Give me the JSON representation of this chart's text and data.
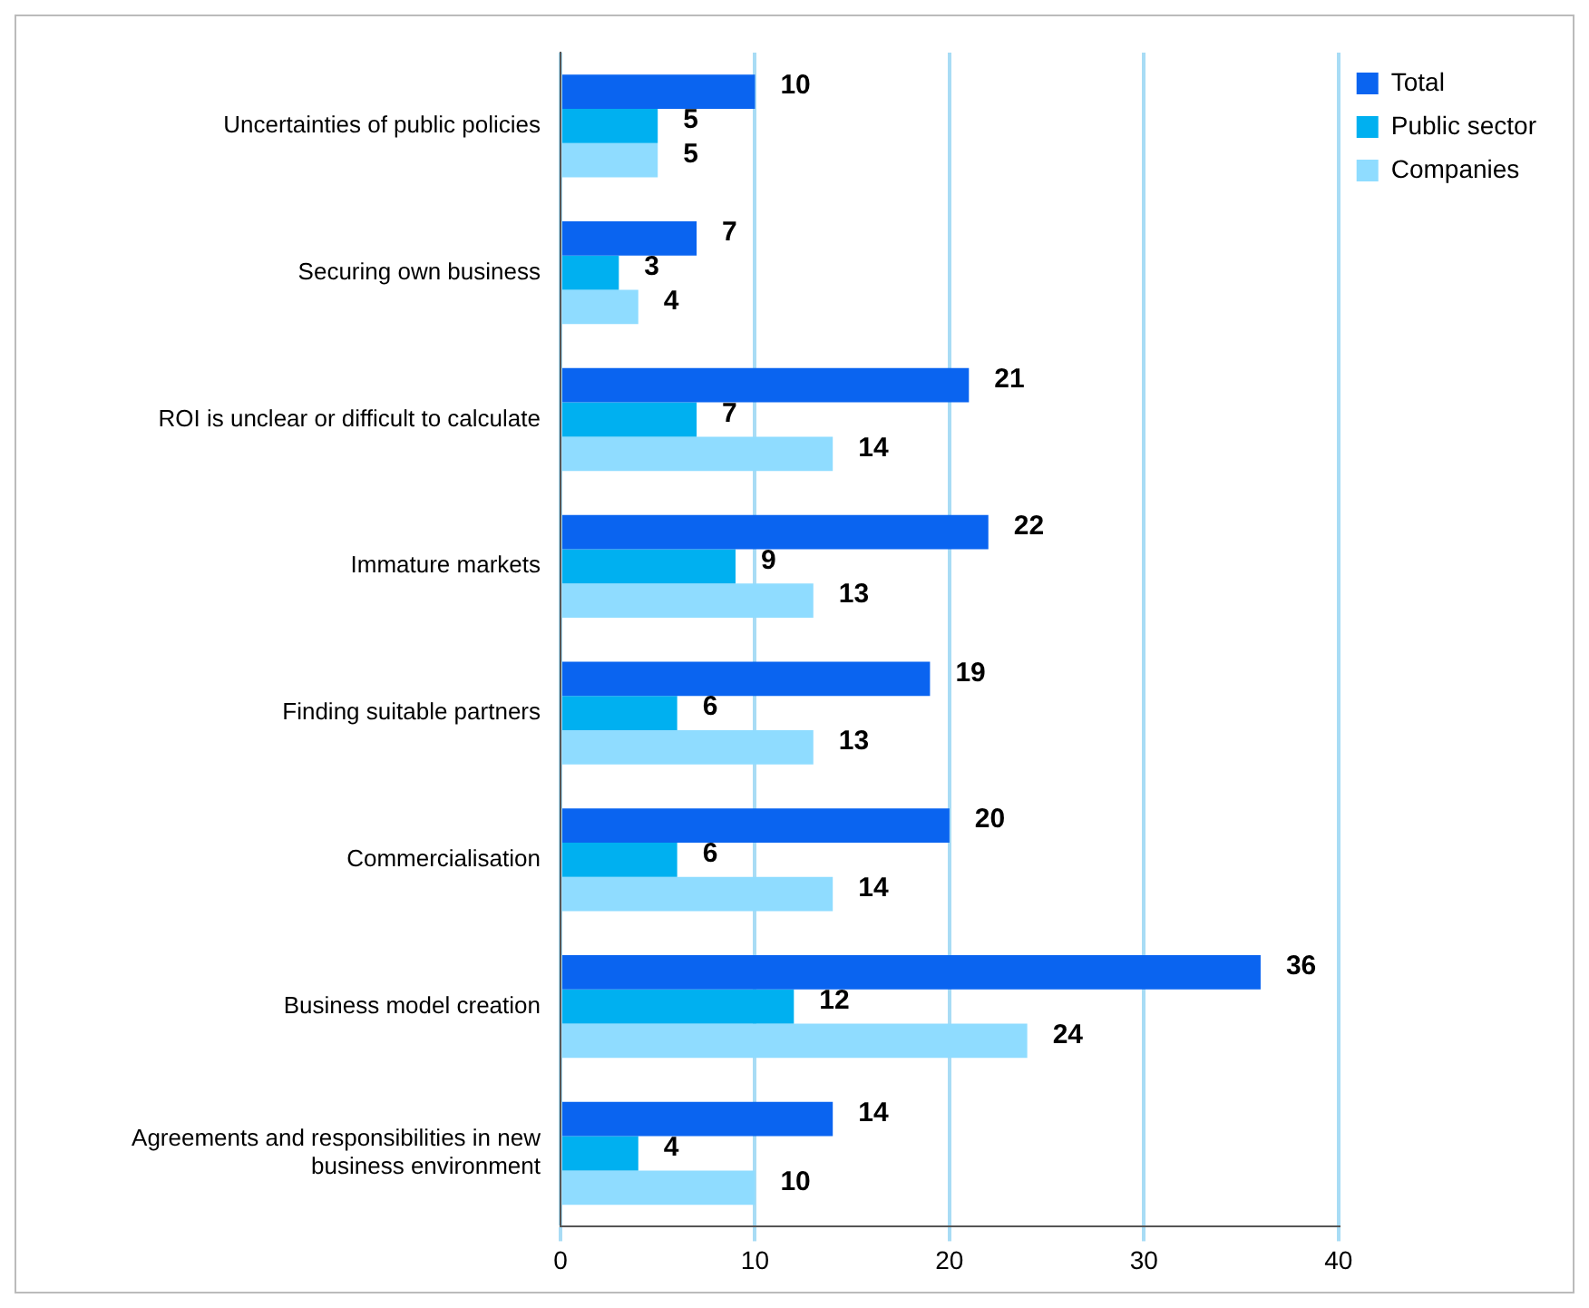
{
  "chart_data": {
    "type": "bar",
    "orientation": "horizontal",
    "categories": [
      "Uncertainties of public policies",
      "Securing own business",
      "ROI is unclear or difficult to calculate",
      "Immature markets",
      "Finding suitable partners",
      "Commercialisation",
      "Business model creation",
      "Agreements and responsibilities in new business environment"
    ],
    "series": [
      {
        "name": "Total",
        "color": "#0a64f0",
        "values": [
          10,
          7,
          21,
          22,
          19,
          20,
          36,
          14
        ]
      },
      {
        "name": "Public sector",
        "color": "#00b0f0",
        "values": [
          5,
          3,
          7,
          9,
          6,
          6,
          12,
          4
        ]
      },
      {
        "name": "Companies",
        "color": "#8fdcff",
        "values": [
          5,
          4,
          14,
          13,
          13,
          14,
          24,
          10
        ]
      }
    ],
    "xlim": [
      0,
      40
    ],
    "xticks": [
      0,
      10,
      20,
      30,
      40
    ],
    "grid": "x",
    "legend": "top right",
    "data_labels": true
  }
}
